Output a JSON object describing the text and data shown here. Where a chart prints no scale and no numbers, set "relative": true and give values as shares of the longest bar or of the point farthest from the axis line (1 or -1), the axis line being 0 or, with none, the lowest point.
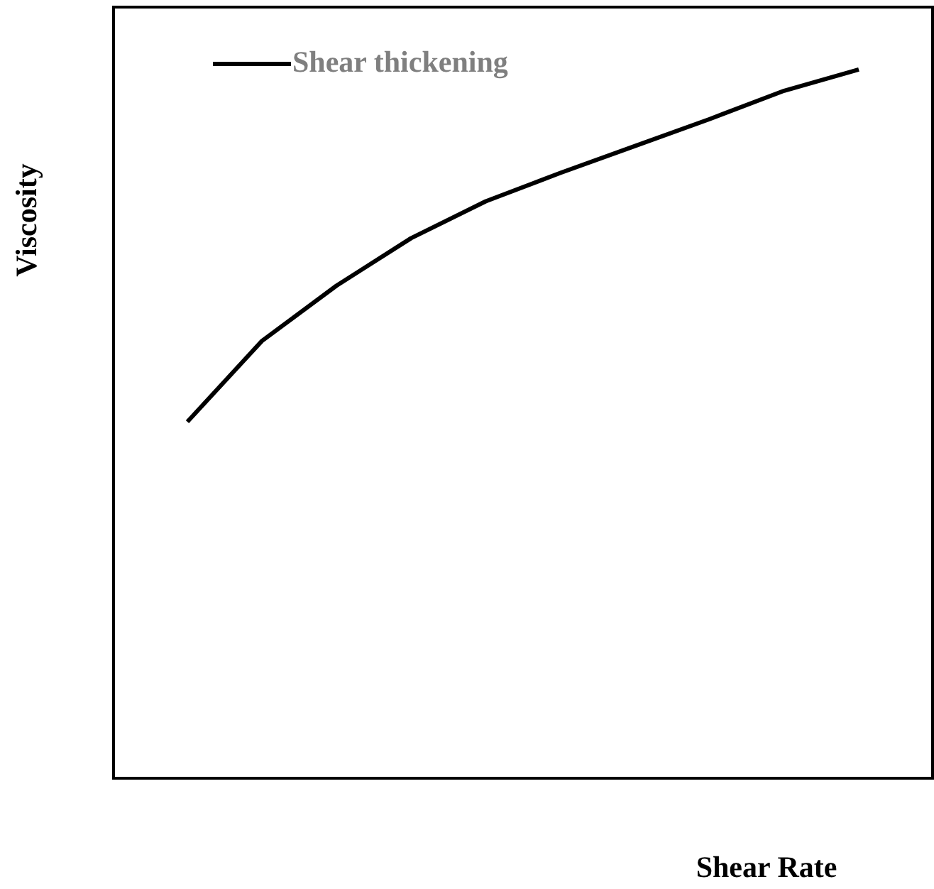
{
  "chart_data": {
    "type": "line",
    "relative": true,
    "xlabel": "Shear Rate",
    "ylabel": "Viscosity",
    "legend": "top left",
    "grid": false,
    "marker": "none",
    "line_style": "solid",
    "categories": [
      null,
      null,
      null,
      null,
      null,
      null,
      null,
      null,
      null,
      null
    ],
    "series": [
      {
        "name": "Shear thickening",
        "color": "#000000",
        "values": [
          0.503,
          0.617,
          0.695,
          0.762,
          0.814,
          0.854,
          0.892,
          0.93,
          0.97,
          1
        ]
      }
    ]
  }
}
